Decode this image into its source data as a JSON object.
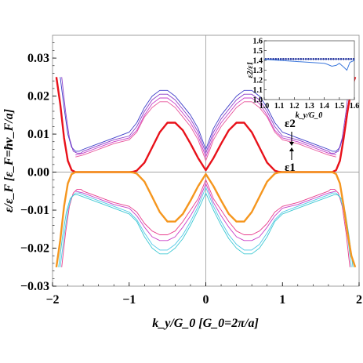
{
  "chart_data": {
    "type": "line",
    "xlabel": "k_y/G_0 [G_0=2π/a]",
    "ylabel": "ε/ε_F [ε_F=ħv_F/a]",
    "xlim": [
      -2,
      2
    ],
    "ylim": [
      -0.03,
      0.036
    ],
    "x_ticks": [
      "−2",
      "−1",
      "0",
      "1",
      "2"
    ],
    "y_ticks": [
      "−0.03",
      "−0.02",
      "−0.01",
      "0.00",
      "0.01",
      "0.02",
      "0.03"
    ],
    "annotations": [
      "ε2",
      "ε1"
    ],
    "colors": {
      "thick_upper": "#e8111a",
      "thick_lower": "#f5961e",
      "upper_a": "#3c3cc8",
      "upper_b": "#8c3cc8",
      "upper_c": "#c83cc8",
      "upper_d": "#e8539a",
      "lower_a": "#e83c8c",
      "lower_b": "#c83cc8",
      "lower_c": "#50c8e6",
      "lower_d": "#3cc8d2",
      "inset_line": "#3c78dc",
      "inset_dots": "#1e2f9c"
    },
    "series": [
      {
        "role": "thick_upper",
        "x": [
          -1.95,
          -1.9,
          -1.85,
          -1.8,
          -1.75,
          -1.7,
          -1.65,
          -1.6,
          -1.4,
          -1.2,
          -1.0,
          -0.95,
          -0.9,
          -0.8,
          -0.7,
          -0.6,
          -0.5,
          -0.4,
          -0.3,
          -0.2,
          -0.1,
          0.0,
          0.1,
          0.2,
          0.3,
          0.4,
          0.5,
          0.6,
          0.7,
          0.8,
          0.9,
          0.95,
          1.0,
          1.2,
          1.4,
          1.6,
          1.65,
          1.7,
          1.75,
          1.8,
          1.85,
          1.9,
          1.95
        ],
        "y": [
          0.025,
          0.018,
          0.009,
          0.003,
          0.0005,
          0.0,
          0.0,
          0.0,
          0.0,
          0.0,
          0.0,
          0.0001,
          0.0004,
          0.0025,
          0.0065,
          0.0105,
          0.013,
          0.013,
          0.011,
          0.0075,
          0.0037,
          0.0005,
          0.0037,
          0.0075,
          0.011,
          0.013,
          0.013,
          0.0105,
          0.0065,
          0.0025,
          0.0004,
          0.0001,
          0.0,
          0.0,
          0.0,
          0.0,
          0.0,
          0.0005,
          0.003,
          0.009,
          0.016,
          0.022,
          0.025
        ]
      },
      {
        "role": "thick_lower",
        "x": [
          -1.95,
          -1.9,
          -1.85,
          -1.8,
          -1.75,
          -1.7,
          -1.65,
          -1.6,
          -1.4,
          -1.2,
          -1.0,
          -0.95,
          -0.9,
          -0.8,
          -0.7,
          -0.6,
          -0.5,
          -0.4,
          -0.3,
          -0.2,
          -0.1,
          0.0,
          0.1,
          0.2,
          0.3,
          0.4,
          0.5,
          0.6,
          0.7,
          0.8,
          0.9,
          0.95,
          1.0,
          1.2,
          1.4,
          1.6,
          1.65,
          1.7,
          1.75,
          1.8,
          1.85,
          1.9,
          1.95
        ],
        "y": [
          -0.025,
          -0.018,
          -0.009,
          -0.003,
          -0.0005,
          0.0,
          0.0,
          0.0,
          0.0,
          0.0,
          0.0,
          -0.0001,
          -0.0004,
          -0.0025,
          -0.0065,
          -0.0105,
          -0.013,
          -0.013,
          -0.011,
          -0.0075,
          -0.0037,
          -0.0005,
          -0.0037,
          -0.0075,
          -0.011,
          -0.013,
          -0.013,
          -0.0105,
          -0.0065,
          -0.0025,
          -0.0004,
          -0.0001,
          0.0,
          0.0,
          0.0,
          0.0,
          0.0,
          -0.0005,
          -0.003,
          -0.009,
          -0.016,
          -0.022,
          -0.025
        ]
      },
      {
        "role": "upper_a",
        "x": [
          -1.9,
          -1.85,
          -1.8,
          -1.75,
          -1.7,
          -1.65,
          -1.6,
          -1.4,
          -1.2,
          -1.0,
          -0.9,
          -0.8,
          -0.7,
          -0.6,
          -0.5,
          -0.4,
          -0.3,
          -0.2,
          -0.1,
          0.0,
          0.1,
          0.2,
          0.3,
          0.4,
          0.5,
          0.6,
          0.7,
          0.8,
          0.9,
          1.0,
          1.2,
          1.4,
          1.6,
          1.65,
          1.7,
          1.75,
          1.8,
          1.85,
          1.9
        ],
        "y": [
          0.025,
          0.017,
          0.01,
          0.0065,
          0.0055,
          0.0055,
          0.006,
          0.0075,
          0.009,
          0.0105,
          0.013,
          0.017,
          0.02,
          0.0215,
          0.0215,
          0.02,
          0.0175,
          0.015,
          0.0115,
          0.006,
          0.0115,
          0.015,
          0.0175,
          0.02,
          0.0215,
          0.0215,
          0.02,
          0.017,
          0.013,
          0.0105,
          0.009,
          0.0075,
          0.006,
          0.0055,
          0.0055,
          0.0065,
          0.01,
          0.017,
          0.023
        ]
      },
      {
        "role": "upper_b",
        "x": [
          -1.88,
          -1.83,
          -1.78,
          -1.73,
          -1.68,
          -1.63,
          -1.6,
          -1.4,
          -1.2,
          -1.0,
          -0.9,
          -0.8,
          -0.7,
          -0.6,
          -0.5,
          -0.4,
          -0.3,
          -0.2,
          -0.1,
          0.0,
          0.1,
          0.2,
          0.3,
          0.4,
          0.5,
          0.6,
          0.7,
          0.8,
          0.9,
          1.0,
          1.2,
          1.4,
          1.6,
          1.63,
          1.68,
          1.73,
          1.78,
          1.83,
          1.88
        ],
        "y": [
          0.025,
          0.016,
          0.009,
          0.0055,
          0.005,
          0.005,
          0.0055,
          0.007,
          0.0085,
          0.0095,
          0.012,
          0.016,
          0.019,
          0.0205,
          0.0205,
          0.019,
          0.0165,
          0.014,
          0.0105,
          0.005,
          0.0105,
          0.014,
          0.0165,
          0.019,
          0.0205,
          0.0205,
          0.019,
          0.016,
          0.012,
          0.0095,
          0.0085,
          0.007,
          0.0055,
          0.005,
          0.005,
          0.0055,
          0.009,
          0.016,
          0.025
        ]
      },
      {
        "role": "upper_c",
        "x": [
          -1.7,
          -1.6,
          -1.4,
          -1.2,
          -1.0,
          -0.9,
          -0.8,
          -0.7,
          -0.6,
          -0.5,
          -0.4,
          -0.3,
          -0.2,
          -0.1,
          0.0,
          0.1,
          0.2,
          0.3,
          0.4,
          0.5,
          0.6,
          0.7,
          0.8,
          0.9,
          1.0,
          1.2,
          1.4,
          1.6,
          1.7
        ],
        "y": [
          0.0045,
          0.005,
          0.0065,
          0.008,
          0.009,
          0.011,
          0.015,
          0.018,
          0.0195,
          0.0195,
          0.018,
          0.0155,
          0.013,
          0.0095,
          0.004,
          0.0095,
          0.013,
          0.0155,
          0.018,
          0.0195,
          0.0195,
          0.018,
          0.015,
          0.011,
          0.009,
          0.008,
          0.0065,
          0.005,
          0.0045
        ]
      },
      {
        "role": "upper_d",
        "x": [
          -1.7,
          -1.6,
          -1.4,
          -1.2,
          -1.0,
          -0.9,
          -0.8,
          -0.7,
          -0.6,
          -0.5,
          -0.4,
          -0.3,
          -0.2,
          -0.1,
          0.0,
          0.1,
          0.2,
          0.3,
          0.4,
          0.5,
          0.6,
          0.7,
          0.8,
          0.9,
          1.0,
          1.2,
          1.4,
          1.6,
          1.7
        ],
        "y": [
          0.004,
          0.0045,
          0.006,
          0.0075,
          0.0085,
          0.0105,
          0.0145,
          0.017,
          0.0185,
          0.0185,
          0.017,
          0.0145,
          0.012,
          0.0085,
          0.003,
          0.0085,
          0.012,
          0.0145,
          0.017,
          0.0185,
          0.0185,
          0.017,
          0.0145,
          0.0105,
          0.0085,
          0.0075,
          0.006,
          0.0045,
          0.004
        ]
      },
      {
        "role": "lower_a",
        "x": [
          -1.88,
          -1.83,
          -1.78,
          -1.73,
          -1.68,
          -1.63,
          -1.6,
          -1.4,
          -1.2,
          -1.0,
          -0.9,
          -0.8,
          -0.7,
          -0.6,
          -0.5,
          -0.4,
          -0.3,
          -0.2,
          -0.1,
          0.0,
          0.1,
          0.2,
          0.3,
          0.4,
          0.5,
          0.6,
          0.7,
          0.8,
          0.9,
          1.0,
          1.2,
          1.4,
          1.6,
          1.63,
          1.68,
          1.73,
          1.78,
          1.83,
          1.88
        ],
        "y": [
          -0.025,
          -0.016,
          -0.009,
          -0.0055,
          -0.0045,
          -0.0045,
          -0.005,
          -0.0065,
          -0.008,
          -0.009,
          -0.0105,
          -0.0135,
          -0.0155,
          -0.0165,
          -0.0165,
          -0.0155,
          -0.013,
          -0.01,
          -0.007,
          -0.002,
          -0.007,
          -0.01,
          -0.013,
          -0.0155,
          -0.0165,
          -0.0165,
          -0.0155,
          -0.0135,
          -0.0105,
          -0.009,
          -0.008,
          -0.0065,
          -0.005,
          -0.0045,
          -0.0045,
          -0.0055,
          -0.009,
          -0.016,
          -0.025
        ]
      },
      {
        "role": "lower_b",
        "x": [
          -1.7,
          -1.6,
          -1.4,
          -1.2,
          -1.0,
          -0.9,
          -0.8,
          -0.7,
          -0.6,
          -0.5,
          -0.4,
          -0.3,
          -0.2,
          -0.1,
          0.0,
          0.1,
          0.2,
          0.3,
          0.4,
          0.5,
          0.6,
          0.7,
          0.8,
          0.9,
          1.0,
          1.2,
          1.4,
          1.6,
          1.7
        ],
        "y": [
          -0.005,
          -0.0055,
          -0.007,
          -0.0085,
          -0.0095,
          -0.0115,
          -0.0145,
          -0.017,
          -0.018,
          -0.018,
          -0.017,
          -0.0145,
          -0.0115,
          -0.008,
          -0.003,
          -0.008,
          -0.0115,
          -0.0145,
          -0.017,
          -0.018,
          -0.018,
          -0.017,
          -0.0145,
          -0.0115,
          -0.0095,
          -0.0085,
          -0.007,
          -0.0055,
          -0.005
        ]
      },
      {
        "role": "lower_c",
        "x": [
          -1.9,
          -1.85,
          -1.8,
          -1.75,
          -1.7,
          -1.65,
          -1.6,
          -1.4,
          -1.2,
          -1.0,
          -0.9,
          -0.8,
          -0.7,
          -0.6,
          -0.5,
          -0.4,
          -0.3,
          -0.2,
          -0.1,
          0.0,
          0.1,
          0.2,
          0.3,
          0.4,
          0.5,
          0.6,
          0.7,
          0.8,
          0.9,
          1.0,
          1.2,
          1.4,
          1.6,
          1.65,
          1.7,
          1.75,
          1.8,
          1.85,
          1.9
        ],
        "y": [
          -0.025,
          -0.017,
          -0.01,
          -0.0065,
          -0.0055,
          -0.0055,
          -0.006,
          -0.0075,
          -0.009,
          -0.0105,
          -0.0125,
          -0.016,
          -0.019,
          -0.0205,
          -0.0205,
          -0.019,
          -0.0165,
          -0.013,
          -0.009,
          -0.004,
          -0.009,
          -0.013,
          -0.0165,
          -0.019,
          -0.0205,
          -0.0205,
          -0.019,
          -0.016,
          -0.0125,
          -0.0105,
          -0.009,
          -0.0075,
          -0.006,
          -0.0055,
          -0.0055,
          -0.0065,
          -0.01,
          -0.017,
          -0.025
        ]
      },
      {
        "role": "lower_d",
        "x": [
          -1.92,
          -1.87,
          -1.82,
          -1.77,
          -1.72,
          -1.67,
          -1.6,
          -1.4,
          -1.2,
          -1.0,
          -0.9,
          -0.8,
          -0.7,
          -0.6,
          -0.5,
          -0.4,
          -0.3,
          -0.2,
          -0.1,
          0.0,
          0.1,
          0.2,
          0.3,
          0.4,
          0.5,
          0.6,
          0.7,
          0.8,
          0.9,
          1.0,
          1.2,
          1.4,
          1.6,
          1.67,
          1.72,
          1.77,
          1.82,
          1.87,
          1.92
        ],
        "y": [
          -0.025,
          -0.017,
          -0.0105,
          -0.007,
          -0.006,
          -0.006,
          -0.0065,
          -0.008,
          -0.0095,
          -0.011,
          -0.013,
          -0.017,
          -0.02,
          -0.0215,
          -0.0215,
          -0.02,
          -0.0175,
          -0.014,
          -0.01,
          -0.0055,
          -0.01,
          -0.014,
          -0.0175,
          -0.02,
          -0.0215,
          -0.0215,
          -0.02,
          -0.017,
          -0.013,
          -0.011,
          -0.0095,
          -0.008,
          -0.0065,
          -0.006,
          -0.006,
          -0.007,
          -0.0105,
          -0.017,
          -0.025
        ]
      }
    ],
    "inset": {
      "type": "line",
      "ylabel": "ε2/ε1",
      "xlabel": "k_y/G_0",
      "xlim": [
        1.0,
        1.6
      ],
      "ylim": [
        1.0,
        1.6
      ],
      "x_ticks": [
        "1.0",
        "1.1",
        "1.2",
        "1.3",
        "1.4",
        "1.5",
        "1.6"
      ],
      "y_ticks": [
        "1.0",
        "1.1",
        "1.2",
        "1.3",
        "1.4",
        "1.5",
        "1.6"
      ],
      "dotted_reference": 1.414,
      "x": [
        1.0,
        1.05,
        1.1,
        1.15,
        1.2,
        1.25,
        1.3,
        1.35,
        1.4,
        1.42,
        1.45,
        1.48,
        1.5,
        1.53,
        1.55,
        1.57,
        1.6
      ],
      "y": [
        1.41,
        1.405,
        1.4,
        1.395,
        1.39,
        1.385,
        1.38,
        1.375,
        1.37,
        1.36,
        1.34,
        1.35,
        1.37,
        1.33,
        1.3,
        1.38,
        1.4
      ]
    }
  }
}
